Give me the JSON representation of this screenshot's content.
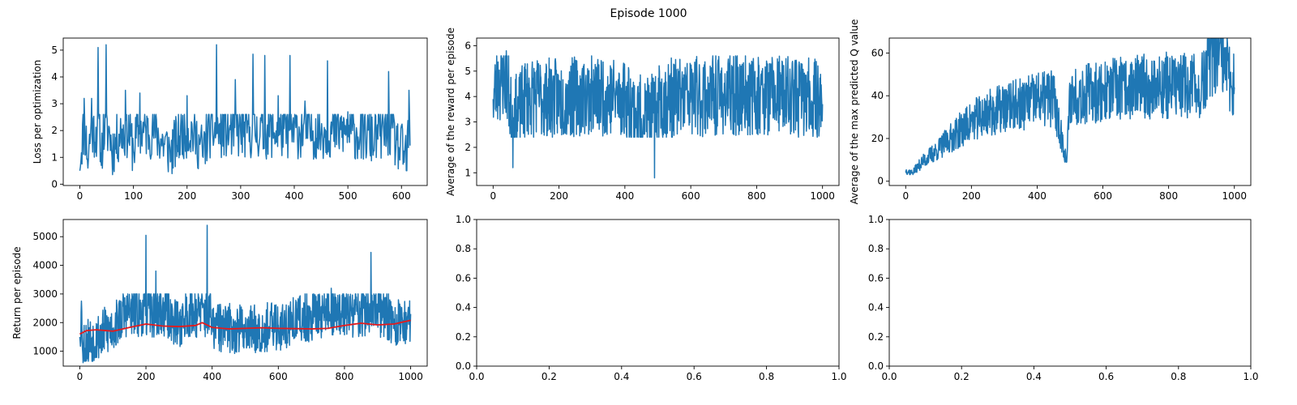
{
  "figure": {
    "suptitle": "Episode 1000"
  },
  "chart_data": [
    {
      "id": "loss",
      "type": "line",
      "title": "",
      "xlabel": "",
      "ylabel": "Loss per optimization",
      "xlim": [
        -31,
        648
      ],
      "ylim": [
        -0.05,
        5.45
      ],
      "xticks": [
        0,
        100,
        200,
        300,
        400,
        500,
        600
      ],
      "yticks": [
        0,
        1,
        2,
        3,
        4,
        5
      ],
      "grid": false,
      "series": [
        {
          "color": "#1f77b4",
          "x_start": 0,
          "x_step": 1,
          "count": 617,
          "anchors": [
            [
              0,
              0.5
            ],
            [
              8,
              3.2
            ],
            [
              15,
              0.6
            ],
            [
              22,
              3.2
            ],
            [
              34,
              5.1
            ],
            [
              40,
              0.7
            ],
            [
              49,
              5.2
            ],
            [
              60,
              1.0
            ],
            [
              85,
              3.5
            ],
            [
              100,
              1.2
            ],
            [
              112,
              3.4
            ],
            [
              140,
              2.5
            ],
            [
              170,
              0.9
            ],
            [
              200,
              3.3
            ],
            [
              230,
              1.0
            ],
            [
              255,
              5.2
            ],
            [
              290,
              3.9
            ],
            [
              323,
              4.85
            ],
            [
              345,
              4.8
            ],
            [
              370,
              3.3
            ],
            [
              392,
              4.8
            ],
            [
              420,
              3.1
            ],
            [
              462,
              4.6
            ],
            [
              480,
              2.5
            ],
            [
              500,
              2.7
            ],
            [
              550,
              2.0
            ],
            [
              576,
              4.2
            ],
            [
              590,
              1.5
            ],
            [
              610,
              0.5
            ],
            [
              614,
              3.5
            ],
            [
              617,
              1.8
            ]
          ],
          "band": [
            0.3,
            2.6
          ],
          "volatility": 0.9,
          "seed": 11
        }
      ]
    },
    {
      "id": "reward",
      "type": "line",
      "title": "",
      "xlabel": "",
      "ylabel": "Average of the reward per episode",
      "xlim": [
        -50,
        1050
      ],
      "ylim": [
        0.5,
        6.3
      ],
      "xticks": [
        0,
        200,
        400,
        600,
        800,
        1000
      ],
      "yticks": [
        1,
        2,
        3,
        4,
        5,
        6
      ],
      "grid": false,
      "series": [
        {
          "color": "#1f77b4",
          "x_start": 0,
          "x_step": 1,
          "count": 1001,
          "anchors": [
            [
              0,
              3.9
            ],
            [
              10,
              4.9
            ],
            [
              40,
              5.8
            ],
            [
              60,
              1.2
            ],
            [
              100,
              4.0
            ],
            [
              200,
              3.8
            ],
            [
              300,
              4.2
            ],
            [
              400,
              3.9
            ],
            [
              490,
              0.8
            ],
            [
              500,
              3.7
            ],
            [
              600,
              4.0
            ],
            [
              700,
              4.1
            ],
            [
              800,
              4.2
            ],
            [
              900,
              4.1
            ],
            [
              1000,
              3.7
            ]
          ],
          "band": [
            2.4,
            5.6
          ],
          "volatility": 1.0,
          "seed": 23
        }
      ]
    },
    {
      "id": "qvalue",
      "type": "line",
      "title": "",
      "xlabel": "",
      "ylabel": "Average of the max predicted Q value",
      "xlim": [
        -50,
        1050
      ],
      "ylim": [
        -2,
        67
      ],
      "xticks": [
        0,
        200,
        400,
        600,
        800,
        1000
      ],
      "yticks": [
        0,
        20,
        40,
        60
      ],
      "grid": false,
      "series": [
        {
          "color": "#1f77b4",
          "x_start": 0,
          "x_step": 1,
          "count": 1001,
          "anchors": [
            [
              0,
              5
            ],
            [
              20,
              4
            ],
            [
              50,
              9
            ],
            [
              100,
              15
            ],
            [
              150,
              22
            ],
            [
              200,
              28
            ],
            [
              250,
              32
            ],
            [
              300,
              34
            ],
            [
              350,
              36
            ],
            [
              400,
              38
            ],
            [
              450,
              39
            ],
            [
              490,
              9
            ],
            [
              500,
              40
            ],
            [
              600,
              42
            ],
            [
              700,
              44
            ],
            [
              800,
              45
            ],
            [
              900,
              44
            ],
            [
              940,
              62
            ],
            [
              1000,
              44
            ]
          ],
          "band": "relative",
          "volatility": 0.35,
          "seed": 37
        }
      ]
    },
    {
      "id": "return",
      "type": "line",
      "title": "",
      "xlabel": "",
      "ylabel": "Return per episode",
      "xlim": [
        -50,
        1050
      ],
      "ylim": [
        480,
        5600
      ],
      "xticks": [
        0,
        200,
        400,
        600,
        800,
        1000
      ],
      "yticks": [
        1000,
        2000,
        3000,
        4000,
        5000
      ],
      "grid": false,
      "series": [
        {
          "color": "#1f77b4",
          "x_start": 0,
          "x_step": 1,
          "count": 1001,
          "anchors": [
            [
              0,
              1500
            ],
            [
              5,
              2750
            ],
            [
              10,
              600
            ],
            [
              100,
              1800
            ],
            [
              200,
              5050
            ],
            [
              230,
              3800
            ],
            [
              300,
              2000
            ],
            [
              385,
              5400
            ],
            [
              400,
              1800
            ],
            [
              500,
              1700
            ],
            [
              600,
              1900
            ],
            [
              760,
              3200
            ],
            [
              880,
              4450
            ],
            [
              950,
              2000
            ],
            [
              1000,
              2300
            ]
          ],
          "band": [
            650,
            3000
          ],
          "volatility": 0.75,
          "seed": 53
        },
        {
          "color": "#e41a1c",
          "x": [
            0,
            20,
            50,
            100,
            150,
            200,
            250,
            300,
            350,
            370,
            400,
            450,
            500,
            550,
            600,
            650,
            700,
            750,
            800,
            850,
            900,
            950,
            1000
          ],
          "values": [
            1600,
            1720,
            1750,
            1700,
            1830,
            1950,
            1880,
            1860,
            1900,
            2000,
            1830,
            1780,
            1800,
            1820,
            1800,
            1790,
            1780,
            1800,
            1900,
            1980,
            1920,
            1950,
            2080
          ]
        }
      ]
    },
    {
      "id": "empty1",
      "type": "line",
      "title": "",
      "xlabel": "",
      "ylabel": "",
      "xlim": [
        0,
        1
      ],
      "ylim": [
        0,
        1
      ],
      "xticks": [
        0.0,
        0.2,
        0.4,
        0.6,
        0.8,
        1.0
      ],
      "yticks": [
        0.0,
        0.2,
        0.4,
        0.6,
        0.8,
        1.0
      ],
      "tick_format": "1dp",
      "grid": false,
      "series": []
    },
    {
      "id": "empty2",
      "type": "line",
      "title": "",
      "xlabel": "",
      "ylabel": "",
      "xlim": [
        0,
        1
      ],
      "ylim": [
        0,
        1
      ],
      "xticks": [
        0.0,
        0.2,
        0.4,
        0.6,
        0.8,
        1.0
      ],
      "yticks": [
        0.0,
        0.2,
        0.4,
        0.6,
        0.8,
        1.0
      ],
      "tick_format": "1dp",
      "grid": false,
      "series": []
    }
  ]
}
